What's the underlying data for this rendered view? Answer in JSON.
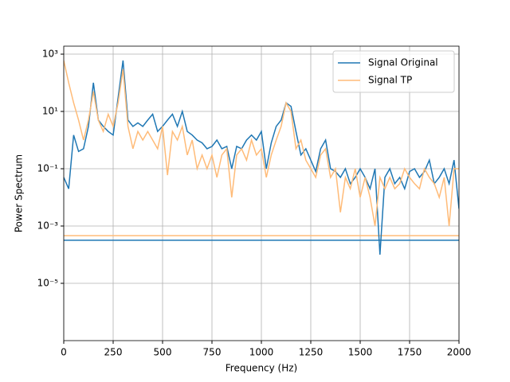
{
  "chart_data": {
    "type": "line",
    "xlabel": "Frequency (Hz)",
    "ylabel": "Power Spectrum",
    "x": [
      0,
      25,
      50,
      75,
      100,
      125,
      150,
      175,
      200,
      225,
      250,
      275,
      300,
      325,
      350,
      375,
      400,
      425,
      450,
      475,
      500,
      525,
      550,
      575,
      600,
      625,
      650,
      675,
      700,
      725,
      750,
      775,
      800,
      825,
      850,
      875,
      900,
      925,
      950,
      975,
      1000,
      1025,
      1050,
      1075,
      1100,
      1125,
      1150,
      1175,
      1200,
      1225,
      1250,
      1275,
      1300,
      1325,
      1350,
      1375,
      1400,
      1425,
      1450,
      1475,
      1500,
      1525,
      1550,
      1575,
      1600,
      1625,
      1650,
      1675,
      1700,
      1725,
      1750,
      1775,
      1800,
      1825,
      1850,
      1875,
      1900,
      1925,
      1950,
      1975,
      2000
    ],
    "series": [
      {
        "name": "Signal Original",
        "color": "#1f77b4",
        "values": [
          0.05,
          0.02,
          1.5,
          0.4,
          0.5,
          3,
          100,
          5,
          3,
          2,
          1.5,
          30,
          600,
          5,
          3,
          4,
          3,
          5,
          8,
          2,
          3,
          5,
          8,
          3,
          10,
          2,
          1.5,
          1,
          0.8,
          0.5,
          0.6,
          1,
          0.5,
          0.6,
          0.1,
          0.6,
          0.5,
          1,
          1.5,
          1,
          2,
          0.1,
          0.8,
          3,
          5,
          20,
          15,
          2,
          0.3,
          0.5,
          0.2,
          0.08,
          0.5,
          1,
          0.1,
          0.08,
          0.05,
          0.1,
          0.03,
          0.05,
          0.1,
          0.05,
          0.02,
          0.1,
          0.0001,
          0.05,
          0.1,
          0.03,
          0.05,
          0.02,
          0.08,
          0.1,
          0.05,
          0.08,
          0.2,
          0.03,
          0.05,
          0.1,
          0.03,
          0.2,
          0.004
        ]
      },
      {
        "name": "Signal TP",
        "color": "#ffbb78",
        "values": [
          600,
          100,
          20,
          5,
          1,
          5,
          50,
          5,
          2,
          8,
          3,
          20,
          300,
          3,
          0.5,
          2,
          1,
          2,
          1,
          0.5,
          3,
          0.06,
          2,
          1,
          3,
          0.3,
          1,
          0.1,
          0.3,
          0.1,
          0.3,
          0.05,
          0.3,
          0.5,
          0.01,
          0.3,
          0.5,
          0.2,
          1,
          0.3,
          0.5,
          0.05,
          0.3,
          1,
          3,
          20,
          10,
          0.5,
          1,
          0.2,
          0.1,
          0.05,
          0.3,
          0.5,
          0.05,
          0.1,
          0.003,
          0.05,
          0.02,
          0.1,
          0.01,
          0.05,
          0.01,
          0.001,
          0.05,
          0.02,
          0.05,
          0.02,
          0.03,
          0.1,
          0.05,
          0.03,
          0.02,
          0.1,
          0.05,
          0.03,
          0.01,
          0.05,
          0.001,
          0.1,
          0.1
        ]
      }
    ],
    "hlines": [
      {
        "value": 0.00032,
        "color": "#1f77b4"
      },
      {
        "value": 0.00046,
        "color": "#ffbb78"
      }
    ],
    "xlim": [
      0,
      2000
    ],
    "xticks": [
      0,
      250,
      500,
      750,
      1000,
      1250,
      1500,
      1750,
      2000
    ],
    "ylim": [
      1e-07,
      1900
    ],
    "ylog": true,
    "yticks": [
      {
        "value": 1e-05,
        "label": "10⁻⁵"
      },
      {
        "value": 0.001,
        "label": "10⁻³"
      },
      {
        "value": 0.1,
        "label": "10⁻¹"
      },
      {
        "value": 10,
        "label": "10¹"
      },
      {
        "value": 1000,
        "label": "10³"
      }
    ],
    "grid": true,
    "legend": "upper right"
  }
}
